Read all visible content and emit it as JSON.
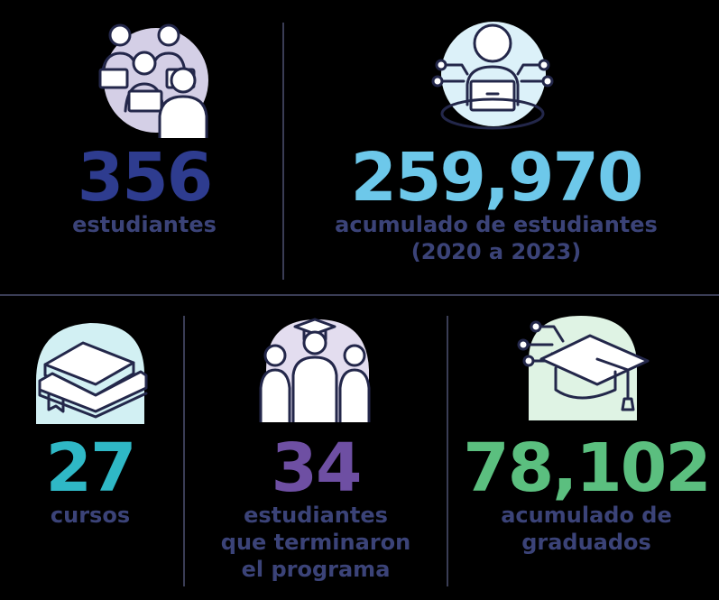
{
  "colors": {
    "background": "#000000",
    "label": "#3b4378",
    "navy": "#2e3c8f",
    "sky": "#6dc8ea",
    "teal": "#2fb8c6",
    "purple": "#6e4fa3",
    "green": "#5bbf7f"
  },
  "stats": {
    "students": {
      "value": "356",
      "label": "estudiantes",
      "icon": "students-laptops-icon"
    },
    "cumulative_students": {
      "value": "259,970",
      "label_line1": "acumulado de estudiantes",
      "label_line2": "(2020 a 2023)",
      "icon": "person-laptop-network-icon"
    },
    "courses": {
      "value": "27",
      "label": "cursos",
      "icon": "books-stack-icon"
    },
    "completed": {
      "value": "34",
      "label_line1": "estudiantes",
      "label_line2": "que terminaron",
      "label_line3": "el programa",
      "icon": "graduate-group-icon"
    },
    "graduates": {
      "value": "78,102",
      "label_line1": "acumulado de",
      "label_line2": "graduados",
      "icon": "graduation-cap-network-icon"
    }
  }
}
